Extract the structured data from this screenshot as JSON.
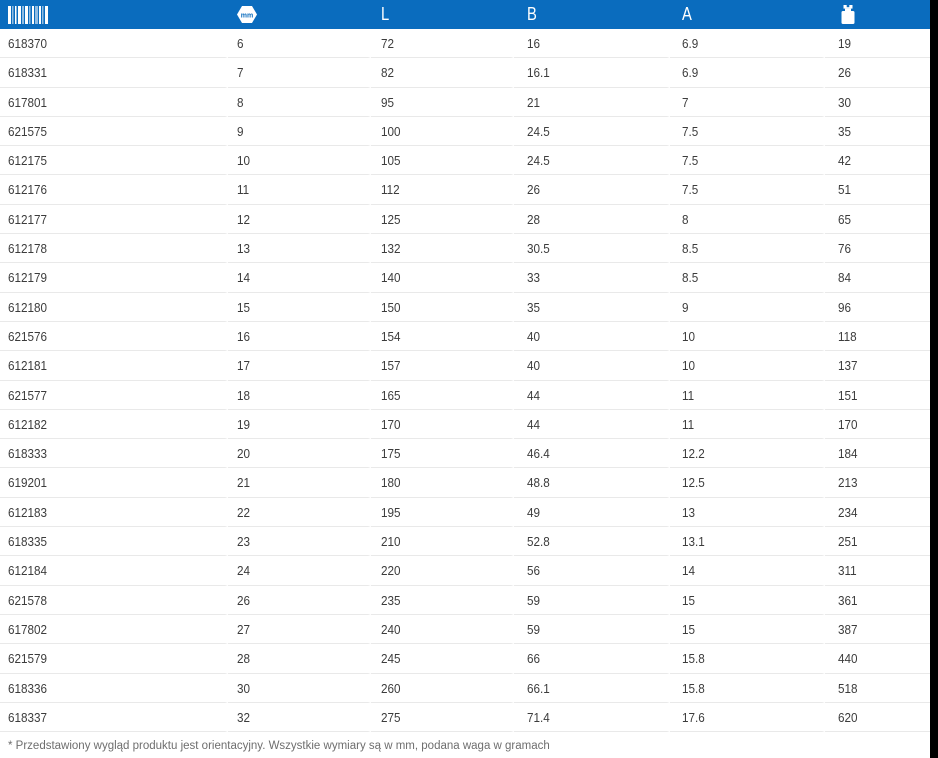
{
  "table": {
    "columns": [
      {
        "id": "code",
        "header_label": "",
        "header_icon": "barcode-icon"
      },
      {
        "id": "size",
        "header_label": "",
        "header_icon": "hex-nut-mm-icon"
      },
      {
        "id": "L",
        "header_label": "L"
      },
      {
        "id": "B",
        "header_label": "B"
      },
      {
        "id": "A",
        "header_label": "A"
      },
      {
        "id": "weight",
        "header_label": "",
        "header_icon": "weight-icon"
      }
    ],
    "hex_icon_text": "mm",
    "rows": [
      [
        "618370",
        "6",
        "72",
        "16",
        "6.9",
        "19"
      ],
      [
        "618331",
        "7",
        "82",
        "16.1",
        "6.9",
        "26"
      ],
      [
        "617801",
        "8",
        "95",
        "21",
        "7",
        "30"
      ],
      [
        "621575",
        "9",
        "100",
        "24.5",
        "7.5",
        "35"
      ],
      [
        "612175",
        "10",
        "105",
        "24.5",
        "7.5",
        "42"
      ],
      [
        "612176",
        "11",
        "112",
        "26",
        "7.5",
        "51"
      ],
      [
        "612177",
        "12",
        "125",
        "28",
        "8",
        "65"
      ],
      [
        "612178",
        "13",
        "132",
        "30.5",
        "8.5",
        "76"
      ],
      [
        "612179",
        "14",
        "140",
        "33",
        "8.5",
        "84"
      ],
      [
        "612180",
        "15",
        "150",
        "35",
        "9",
        "96"
      ],
      [
        "621576",
        "16",
        "154",
        "40",
        "10",
        "118"
      ],
      [
        "612181",
        "17",
        "157",
        "40",
        "10",
        "137"
      ],
      [
        "621577",
        "18",
        "165",
        "44",
        "11",
        "151"
      ],
      [
        "612182",
        "19",
        "170",
        "44",
        "11",
        "170"
      ],
      [
        "618333",
        "20",
        "175",
        "46.4",
        "12.2",
        "184"
      ],
      [
        "619201",
        "21",
        "180",
        "48.8",
        "12.5",
        "213"
      ],
      [
        "612183",
        "22",
        "195",
        "49",
        "13",
        "234"
      ],
      [
        "618335",
        "23",
        "210",
        "52.8",
        "13.1",
        "251"
      ],
      [
        "612184",
        "24",
        "220",
        "56",
        "14",
        "311"
      ],
      [
        "621578",
        "26",
        "235",
        "59",
        "15",
        "361"
      ],
      [
        "617802",
        "27",
        "240",
        "59",
        "15",
        "387"
      ],
      [
        "621579",
        "28",
        "245",
        "66",
        "15.8",
        "440"
      ],
      [
        "618336",
        "30",
        "260",
        "66.1",
        "15.8",
        "518"
      ],
      [
        "618337",
        "32",
        "275",
        "71.4",
        "17.6",
        "620"
      ]
    ]
  },
  "footnote": "* Przedstawiony wygląd produktu jest orientacyjny. Wszystkie wymiary są w mm, podana waga w gramach",
  "colors": {
    "header_bg": "#0a6cbe",
    "row_text": "#3c3c3c",
    "separator": "#e9e9e9",
    "footnote_text": "#6e6e6e",
    "right_strip": "#000000"
  }
}
